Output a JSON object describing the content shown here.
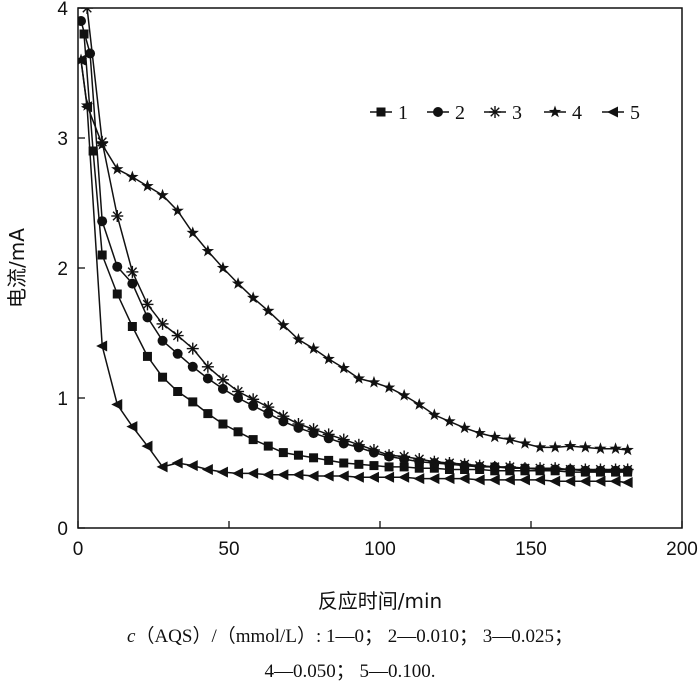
{
  "chart_data": {
    "type": "line",
    "xlabel": "反应时间/min",
    "ylabel": "电流/mA",
    "xlim": [
      0,
      200
    ],
    "ylim": [
      0,
      4
    ],
    "x_ticks": [
      "0",
      "50",
      "100",
      "150",
      "200"
    ],
    "y_ticks": [
      "0",
      "1",
      "2",
      "3",
      "4"
    ],
    "grid": false,
    "legend_position": "top-right",
    "series": [
      {
        "name": "1",
        "marker": "square",
        "points": [
          [
            2,
            3.8
          ],
          [
            5,
            2.9
          ],
          [
            8,
            2.1
          ],
          [
            13,
            1.8
          ],
          [
            18,
            1.55
          ],
          [
            23,
            1.32
          ],
          [
            28,
            1.16
          ],
          [
            33,
            1.05
          ],
          [
            38,
            0.97
          ],
          [
            43,
            0.88
          ],
          [
            48,
            0.8
          ],
          [
            53,
            0.74
          ],
          [
            58,
            0.68
          ],
          [
            63,
            0.63
          ],
          [
            68,
            0.58
          ],
          [
            73,
            0.56
          ],
          [
            78,
            0.54
          ],
          [
            83,
            0.52
          ],
          [
            88,
            0.5
          ],
          [
            93,
            0.49
          ],
          [
            98,
            0.48
          ],
          [
            103,
            0.47
          ],
          [
            108,
            0.47
          ],
          [
            113,
            0.46
          ],
          [
            118,
            0.46
          ],
          [
            123,
            0.45
          ],
          [
            128,
            0.45
          ],
          [
            133,
            0.45
          ],
          [
            138,
            0.44
          ],
          [
            143,
            0.44
          ],
          [
            148,
            0.44
          ],
          [
            153,
            0.44
          ],
          [
            158,
            0.44
          ],
          [
            163,
            0.43
          ],
          [
            168,
            0.43
          ],
          [
            173,
            0.43
          ],
          [
            178,
            0.43
          ],
          [
            182,
            0.43
          ]
        ]
      },
      {
        "name": "2",
        "marker": "circle",
        "points": [
          [
            1,
            3.9
          ],
          [
            4,
            3.65
          ],
          [
            8,
            2.36
          ],
          [
            13,
            2.01
          ],
          [
            18,
            1.88
          ],
          [
            23,
            1.62
          ],
          [
            28,
            1.44
          ],
          [
            33,
            1.34
          ],
          [
            38,
            1.24
          ],
          [
            43,
            1.15
          ],
          [
            48,
            1.07
          ],
          [
            53,
            1.0
          ],
          [
            58,
            0.94
          ],
          [
            63,
            0.88
          ],
          [
            68,
            0.82
          ],
          [
            73,
            0.77
          ],
          [
            78,
            0.73
          ],
          [
            83,
            0.69
          ],
          [
            88,
            0.65
          ],
          [
            93,
            0.62
          ],
          [
            98,
            0.58
          ],
          [
            103,
            0.55
          ],
          [
            108,
            0.53
          ],
          [
            113,
            0.51
          ],
          [
            118,
            0.5
          ],
          [
            123,
            0.49
          ],
          [
            128,
            0.48
          ],
          [
            133,
            0.47
          ],
          [
            138,
            0.47
          ],
          [
            143,
            0.46
          ],
          [
            148,
            0.46
          ],
          [
            153,
            0.45
          ],
          [
            158,
            0.45
          ],
          [
            163,
            0.45
          ],
          [
            168,
            0.44
          ],
          [
            173,
            0.44
          ],
          [
            178,
            0.44
          ],
          [
            182,
            0.44
          ]
        ]
      },
      {
        "name": "3",
        "marker": "asterisk",
        "points": [
          [
            3,
            4.0
          ],
          [
            8,
            2.97
          ],
          [
            13,
            2.4
          ],
          [
            18,
            1.97
          ],
          [
            23,
            1.72
          ],
          [
            28,
            1.57
          ],
          [
            33,
            1.48
          ],
          [
            38,
            1.38
          ],
          [
            43,
            1.24
          ],
          [
            48,
            1.14
          ],
          [
            53,
            1.05
          ],
          [
            58,
            0.99
          ],
          [
            63,
            0.93
          ],
          [
            68,
            0.86
          ],
          [
            73,
            0.8
          ],
          [
            78,
            0.76
          ],
          [
            83,
            0.72
          ],
          [
            88,
            0.68
          ],
          [
            93,
            0.64
          ],
          [
            98,
            0.6
          ],
          [
            103,
            0.56
          ],
          [
            108,
            0.55
          ],
          [
            113,
            0.53
          ],
          [
            118,
            0.51
          ],
          [
            123,
            0.5
          ],
          [
            128,
            0.49
          ],
          [
            133,
            0.48
          ],
          [
            138,
            0.47
          ],
          [
            143,
            0.47
          ],
          [
            148,
            0.46
          ],
          [
            153,
            0.46
          ],
          [
            158,
            0.46
          ],
          [
            163,
            0.45
          ],
          [
            168,
            0.45
          ],
          [
            173,
            0.45
          ],
          [
            178,
            0.45
          ],
          [
            182,
            0.45
          ]
        ]
      },
      {
        "name": "4",
        "marker": "star",
        "points": [
          [
            1,
            3.6
          ],
          [
            3,
            3.25
          ],
          [
            8,
            2.95
          ],
          [
            13,
            2.76
          ],
          [
            18,
            2.7
          ],
          [
            23,
            2.63
          ],
          [
            28,
            2.56
          ],
          [
            33,
            2.44
          ],
          [
            38,
            2.27
          ],
          [
            43,
            2.13
          ],
          [
            48,
            2.0
          ],
          [
            53,
            1.88
          ],
          [
            58,
            1.77
          ],
          [
            63,
            1.67
          ],
          [
            68,
            1.56
          ],
          [
            73,
            1.45
          ],
          [
            78,
            1.38
          ],
          [
            83,
            1.3
          ],
          [
            88,
            1.23
          ],
          [
            93,
            1.15
          ],
          [
            98,
            1.12
          ],
          [
            103,
            1.08
          ],
          [
            108,
            1.02
          ],
          [
            113,
            0.95
          ],
          [
            118,
            0.87
          ],
          [
            123,
            0.82
          ],
          [
            128,
            0.77
          ],
          [
            133,
            0.73
          ],
          [
            138,
            0.7
          ],
          [
            143,
            0.68
          ],
          [
            148,
            0.65
          ],
          [
            153,
            0.62
          ],
          [
            158,
            0.62
          ],
          [
            163,
            0.63
          ],
          [
            168,
            0.62
          ],
          [
            173,
            0.61
          ],
          [
            178,
            0.61
          ],
          [
            182,
            0.6
          ]
        ]
      },
      {
        "name": "5",
        "marker": "triangle-left",
        "points": [
          [
            1,
            3.6
          ],
          [
            3,
            3.24
          ],
          [
            8,
            1.4
          ],
          [
            13,
            0.95
          ],
          [
            18,
            0.78
          ],
          [
            23,
            0.63
          ],
          [
            28,
            0.47
          ],
          [
            33,
            0.5
          ],
          [
            38,
            0.48
          ],
          [
            43,
            0.45
          ],
          [
            48,
            0.43
          ],
          [
            53,
            0.42
          ],
          [
            58,
            0.42
          ],
          [
            63,
            0.41
          ],
          [
            68,
            0.41
          ],
          [
            73,
            0.41
          ],
          [
            78,
            0.4
          ],
          [
            83,
            0.4
          ],
          [
            88,
            0.4
          ],
          [
            93,
            0.39
          ],
          [
            98,
            0.39
          ],
          [
            103,
            0.39
          ],
          [
            108,
            0.39
          ],
          [
            113,
            0.38
          ],
          [
            118,
            0.38
          ],
          [
            123,
            0.38
          ],
          [
            128,
            0.38
          ],
          [
            133,
            0.37
          ],
          [
            138,
            0.37
          ],
          [
            143,
            0.37
          ],
          [
            148,
            0.37
          ],
          [
            153,
            0.37
          ],
          [
            158,
            0.36
          ],
          [
            163,
            0.36
          ],
          [
            168,
            0.36
          ],
          [
            173,
            0.36
          ],
          [
            178,
            0.36
          ],
          [
            182,
            0.35
          ]
        ]
      }
    ]
  },
  "caption": {
    "var": "c",
    "line1_rest": "（AQS）/（mmol/L）: 1—0；  2—0.010；  3—0.025；",
    "line2": "4—0.050；  5—0.100."
  }
}
